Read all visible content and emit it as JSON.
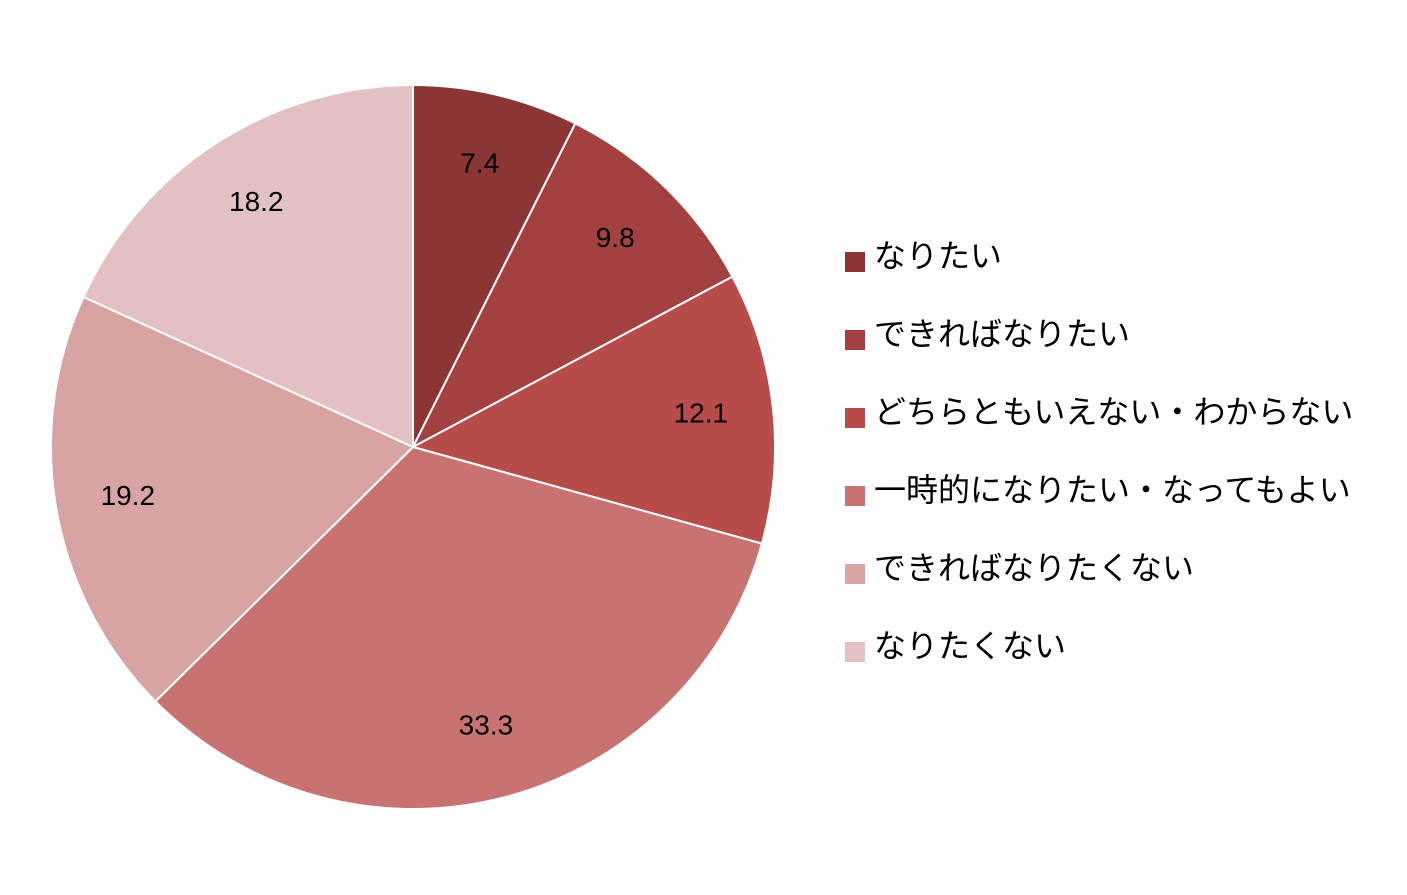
{
  "chart_data": {
    "type": "pie",
    "categories": [
      "なりたい",
      "できればなりたい",
      "どちらともいえない・わからない",
      "一時的になりたい・なってもよい",
      "できればなりたくない",
      "なりたくない"
    ],
    "values": [
      7.4,
      9.8,
      12.1,
      33.3,
      19.2,
      18.2
    ],
    "colors": [
      "#8b3535",
      "#a34040",
      "#b84c4b",
      "#c87371",
      "#d8a3a3",
      "#e3c1c2"
    ],
    "legend": "right"
  }
}
